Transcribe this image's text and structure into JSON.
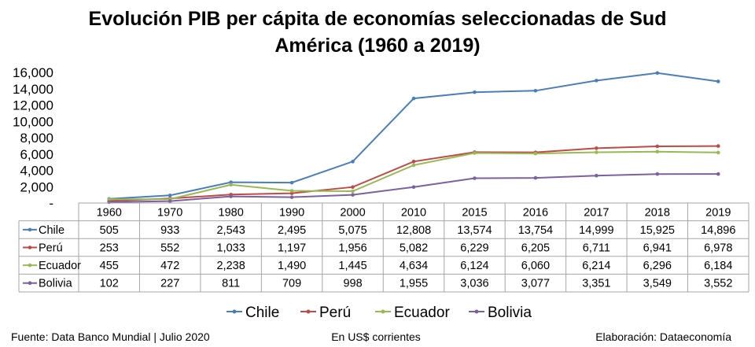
{
  "title_line1": "Evolución PIB per cápita de economías seleccionadas de Sud",
  "title_line2": "América (1960 a 2019)",
  "footer": {
    "source": "Fuente: Data Banco Mundial | Julio 2020",
    "units": "En US$ corrientes",
    "credit": "Elaboración: Dataeconomía"
  },
  "chart_data": {
    "type": "line",
    "x": [
      "1960",
      "1970",
      "1980",
      "1990",
      "2000",
      "2010",
      "2015",
      "2016",
      "2017",
      "2018",
      "2019"
    ],
    "ylim": [
      0,
      16000
    ],
    "yticks": [
      0,
      2000,
      4000,
      6000,
      8000,
      10000,
      12000,
      14000,
      16000
    ],
    "ytick_labels": [
      "-",
      "2,000",
      "4,000",
      "6,000",
      "8,000",
      "10,000",
      "12,000",
      "14,000",
      "16,000"
    ],
    "grid": false,
    "legend": "bottom",
    "data_table": true,
    "series": [
      {
        "name": "Chile",
        "color": "#4a7ebb",
        "values": [
          505,
          933,
          2543,
          2495,
          5075,
          12808,
          13574,
          13754,
          14999,
          15925,
          14896
        ],
        "labels": [
          "505",
          "933",
          "2,543",
          "2,495",
          "5,075",
          "12,808",
          "13,574",
          "13,754",
          "14,999",
          "15,925",
          "14,896"
        ]
      },
      {
        "name": "Perú",
        "color": "#be4b48",
        "values": [
          253,
          552,
          1033,
          1197,
          1956,
          5082,
          6229,
          6205,
          6711,
          6941,
          6978
        ],
        "labels": [
          "253",
          "552",
          "1,033",
          "1,197",
          "1,956",
          "5,082",
          "6,229",
          "6,205",
          "6,711",
          "6,941",
          "6,978"
        ]
      },
      {
        "name": "Ecuador",
        "color": "#98b954",
        "values": [
          455,
          472,
          2238,
          1490,
          1445,
          4634,
          6124,
          6060,
          6214,
          6296,
          6184
        ],
        "labels": [
          "455",
          "472",
          "2,238",
          "1,490",
          "1,445",
          "4,634",
          "6,124",
          "6,060",
          "6,214",
          "6,296",
          "6,184"
        ]
      },
      {
        "name": "Bolivia",
        "color": "#7d60a0",
        "values": [
          102,
          227,
          811,
          709,
          998,
          1955,
          3036,
          3077,
          3351,
          3549,
          3552
        ],
        "labels": [
          "102",
          "227",
          "811",
          "709",
          "998",
          "1,955",
          "3,036",
          "3,077",
          "3,351",
          "3,549",
          "3,552"
        ]
      }
    ]
  }
}
